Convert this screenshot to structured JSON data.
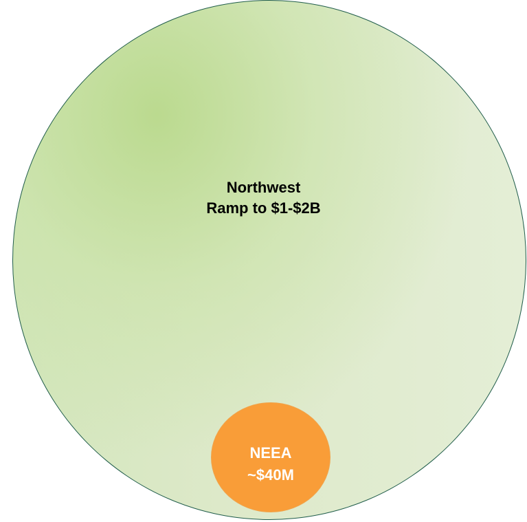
{
  "outer_circle": {
    "title": "Northwest",
    "value": "Ramp to $1-$2B",
    "fill_color": "#d7e8c4",
    "border_color": "#1f5c4a"
  },
  "inner_circle": {
    "title": "NEEA",
    "value": "~$40M",
    "fill_color": "#f99d38",
    "text_color": "#ffffff"
  }
}
